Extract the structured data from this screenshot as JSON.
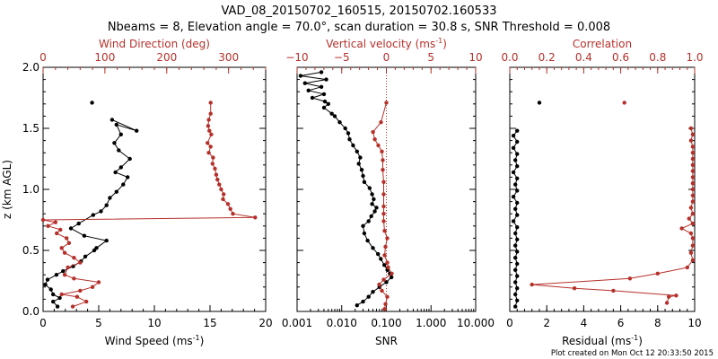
{
  "header": {
    "title_line1": "VAD_08_20150702_160515, 20150702.160533",
    "title_line2": "Nbeams = 8, Elevation angle = 70.0°, scan duration = 30.8 s, SNR Threshold = 0.008"
  },
  "footer": {
    "text": "Plot created on Mon Oct 12 20:33:50 2015"
  },
  "colors": {
    "black": "#000000",
    "red": "#b5302a"
  },
  "chart_data": [
    {
      "type": "line",
      "panel": "left",
      "ylabel": "z (km AGL)",
      "ylim": [
        0,
        2.0
      ],
      "yticks": [
        "0.0",
        "0.5",
        "1.0",
        "1.5",
        "2.0"
      ],
      "bottom_axis": {
        "label": "Wind Speed (ms",
        "exp": "-1",
        "close": ")",
        "range": [
          0,
          20
        ],
        "ticks": [
          "0",
          "5",
          "10",
          "15",
          "20"
        ]
      },
      "top_axis": {
        "label": "Wind Direction (deg)",
        "range": [
          0,
          360
        ],
        "ticks": [
          "0",
          "100",
          "200",
          "300"
        ]
      },
      "series": [
        {
          "name": "Wind Speed",
          "axis": "bottom",
          "color": "black",
          "points": [
            [
              6.2,
              1.57
            ],
            [
              8.4,
              1.48
            ],
            [
              6.6,
              1.53
            ],
            [
              7.0,
              1.45
            ],
            [
              6.4,
              1.38
            ],
            [
              6.8,
              1.32
            ],
            [
              7.8,
              1.25
            ],
            [
              7.0,
              1.18
            ],
            [
              6.5,
              1.14
            ],
            [
              7.6,
              1.1
            ],
            [
              7.2,
              1.04
            ],
            [
              6.6,
              0.98
            ],
            [
              6.0,
              0.93
            ],
            [
              5.7,
              0.87
            ],
            [
              5.2,
              0.82
            ],
            [
              4.5,
              0.79
            ],
            [
              3.2,
              0.72
            ],
            [
              2.5,
              0.68
            ],
            [
              3.7,
              0.62
            ],
            [
              5.7,
              0.58
            ],
            [
              4.8,
              0.52
            ],
            [
              4.6,
              0.5
            ],
            [
              3.8,
              0.45
            ],
            [
              3.4,
              0.41
            ],
            [
              2.7,
              0.37
            ],
            [
              1.8,
              0.33
            ],
            [
              1.2,
              0.3
            ],
            [
              0.4,
              0.26
            ],
            [
              0.2,
              0.22
            ],
            [
              0.7,
              0.18
            ],
            [
              0.9,
              0.14
            ],
            [
              1.5,
              0.11
            ],
            [
              0.9,
              0.08
            ],
            [
              1.3,
              0.04
            ]
          ]
        },
        {
          "name": "Wind Speed (top level)",
          "axis": "bottom",
          "color": "black",
          "points": [
            [
              4.4,
              1.71
            ]
          ]
        },
        {
          "name": "Wind Direction",
          "axis": "top",
          "color": "red",
          "points": [
            [
              271,
              1.71
            ],
            [
              271,
              1.62
            ],
            [
              268,
              1.57
            ],
            [
              267,
              1.52
            ],
            [
              269,
              1.48
            ],
            [
              272,
              1.45
            ],
            [
              266,
              1.38
            ],
            [
              271,
              1.35
            ],
            [
              268,
              1.3
            ],
            [
              275,
              1.26
            ],
            [
              274,
              1.21
            ],
            [
              278,
              1.17
            ],
            [
              280,
              1.12
            ],
            [
              282,
              1.08
            ],
            [
              285,
              1.04
            ],
            [
              288,
              1.0
            ],
            [
              292,
              0.96
            ],
            [
              291,
              0.92
            ],
            [
              299,
              0.88
            ],
            [
              303,
              0.84
            ],
            [
              307,
              0.8
            ],
            [
              343,
              0.77
            ],
            [
              0,
              0.75
            ],
            [
              20,
              0.73
            ],
            [
              8,
              0.7
            ],
            [
              28,
              0.67
            ],
            [
              22,
              0.64
            ],
            [
              38,
              0.6
            ],
            [
              42,
              0.56
            ],
            [
              30,
              0.52
            ],
            [
              35,
              0.48
            ],
            [
              50,
              0.44
            ],
            [
              60,
              0.4
            ],
            [
              40,
              0.36
            ],
            [
              35,
              0.3
            ],
            [
              50,
              0.27
            ],
            [
              90,
              0.24
            ],
            [
              80,
              0.2
            ],
            [
              60,
              0.17
            ],
            [
              30,
              0.14
            ],
            [
              55,
              0.12
            ],
            [
              70,
              0.08
            ],
            [
              48,
              0.04
            ]
          ]
        }
      ]
    },
    {
      "type": "line",
      "panel": "middle",
      "ylim": [
        0,
        2.0
      ],
      "bottom_axis": {
        "label": "SNR",
        "scale": "log",
        "range": [
          0.001,
          10
        ],
        "ticks": [
          "0.001",
          "0.010",
          "0.100",
          "1.000",
          "10.000"
        ]
      },
      "top_axis": {
        "label": "Vertical velocity (ms",
        "exp": "-1",
        "close": ")",
        "range": [
          -10,
          10
        ],
        "ticks": [
          "−10",
          "−5",
          "0",
          "5",
          "10"
        ]
      },
      "reference_line": {
        "axis": "top",
        "value": 0,
        "style": "dotted",
        "color": "red"
      },
      "series": [
        {
          "name": "SNR",
          "axis": "bottom",
          "color": "black",
          "points": [
            [
              0.0035,
              1.96
            ],
            [
              0.0012,
              1.93
            ],
            [
              0.0045,
              1.9
            ],
            [
              0.0015,
              1.87
            ],
            [
              0.0035,
              1.84
            ],
            [
              0.0018,
              1.81
            ],
            [
              0.004,
              1.78
            ],
            [
              0.0022,
              1.75
            ],
            [
              0.0042,
              1.72
            ],
            [
              0.005,
              1.7
            ],
            [
              0.004,
              1.67
            ],
            [
              0.006,
              1.62
            ],
            [
              0.007,
              1.6
            ],
            [
              0.009,
              1.55
            ],
            [
              0.012,
              1.5
            ],
            [
              0.014,
              1.46
            ],
            [
              0.015,
              1.41
            ],
            [
              0.018,
              1.36
            ],
            [
              0.022,
              1.31
            ],
            [
              0.026,
              1.26
            ],
            [
              0.024,
              1.21
            ],
            [
              0.028,
              1.16
            ],
            [
              0.03,
              1.11
            ],
            [
              0.032,
              1.06
            ],
            [
              0.042,
              1.01
            ],
            [
              0.048,
              0.96
            ],
            [
              0.052,
              0.92
            ],
            [
              0.048,
              0.88
            ],
            [
              0.06,
              0.85
            ],
            [
              0.055,
              0.82
            ],
            [
              0.046,
              0.78
            ],
            [
              0.04,
              0.74
            ],
            [
              0.03,
              0.7
            ],
            [
              0.032,
              0.64
            ],
            [
              0.038,
              0.58
            ],
            [
              0.05,
              0.52
            ],
            [
              0.065,
              0.47
            ],
            [
              0.075,
              0.43
            ],
            [
              0.09,
              0.38
            ],
            [
              0.105,
              0.34
            ],
            [
              0.12,
              0.31
            ],
            [
              0.13,
              0.28
            ],
            [
              0.1,
              0.24
            ],
            [
              0.07,
              0.2
            ],
            [
              0.05,
              0.16
            ],
            [
              0.04,
              0.12
            ],
            [
              0.03,
              0.08
            ],
            [
              0.022,
              0.05
            ]
          ]
        },
        {
          "name": "Vertical velocity",
          "axis": "top",
          "color": "red",
          "points": [
            [
              0.0,
              1.71
            ],
            [
              -0.6,
              1.55
            ],
            [
              -1.5,
              1.47
            ],
            [
              -1.3,
              1.41
            ],
            [
              -0.9,
              1.36
            ],
            [
              -0.5,
              1.31
            ],
            [
              -0.4,
              1.24
            ],
            [
              -0.4,
              1.16
            ],
            [
              -0.3,
              1.06
            ],
            [
              -0.3,
              0.96
            ],
            [
              -0.3,
              0.86
            ],
            [
              -0.3,
              0.8
            ],
            [
              -0.3,
              0.74
            ],
            [
              -0.2,
              0.66
            ],
            [
              0.1,
              0.6
            ],
            [
              -0.1,
              0.53
            ],
            [
              -0.2,
              0.46
            ],
            [
              0.1,
              0.4
            ],
            [
              0.2,
              0.36
            ],
            [
              0.6,
              0.31
            ],
            [
              -0.3,
              0.26
            ],
            [
              -0.8,
              0.22
            ],
            [
              -0.5,
              0.17
            ],
            [
              0.1,
              0.12
            ],
            [
              -0.1,
              0.06
            ],
            [
              -0.2,
              0.02
            ]
          ]
        }
      ]
    },
    {
      "type": "line",
      "panel": "right",
      "ylim": [
        0,
        2.0
      ],
      "bottom_axis": {
        "label": "Residual (ms",
        "exp": "-1",
        "close": ")",
        "range": [
          0,
          10
        ],
        "ticks": [
          "0",
          "2",
          "4",
          "6",
          "8",
          "10"
        ]
      },
      "top_axis": {
        "label": "Correlation",
        "range": [
          0,
          1
        ],
        "ticks": [
          "0.0",
          "0.2",
          "0.4",
          "0.6",
          "0.8",
          "1.0"
        ]
      },
      "series": [
        {
          "name": "Residual",
          "axis": "bottom",
          "color": "black",
          "points": [
            [
              0.4,
              1.48
            ],
            [
              0.2,
              1.44
            ],
            [
              0.4,
              1.39
            ],
            [
              0.2,
              1.34
            ],
            [
              0.4,
              1.29
            ],
            [
              0.3,
              1.24
            ],
            [
              0.4,
              1.19
            ],
            [
              0.2,
              1.14
            ],
            [
              0.4,
              1.09
            ],
            [
              0.3,
              1.04
            ],
            [
              0.4,
              0.99
            ],
            [
              0.2,
              0.94
            ],
            [
              0.4,
              0.89
            ],
            [
              0.3,
              0.84
            ],
            [
              0.4,
              0.79
            ],
            [
              0.2,
              0.74
            ],
            [
              0.4,
              0.69
            ],
            [
              0.3,
              0.64
            ],
            [
              0.4,
              0.59
            ],
            [
              0.3,
              0.54
            ],
            [
              0.4,
              0.49
            ],
            [
              0.3,
              0.44
            ],
            [
              0.4,
              0.39
            ],
            [
              0.3,
              0.34
            ],
            [
              0.4,
              0.29
            ],
            [
              0.3,
              0.24
            ],
            [
              0.4,
              0.19
            ],
            [
              0.3,
              0.14
            ],
            [
              0.4,
              0.09
            ],
            [
              0.3,
              0.04
            ]
          ]
        },
        {
          "name": "Residual (top level)",
          "axis": "bottom",
          "color": "black",
          "points": [
            [
              1.6,
              1.71
            ]
          ]
        },
        {
          "name": "Correlation",
          "axis": "top",
          "color": "red",
          "points": [
            [
              0.62,
              1.71
            ]
          ]
        },
        {
          "name": "Correlation profile",
          "axis": "top",
          "color": "red",
          "points": [
            [
              0.98,
              1.5
            ],
            [
              0.99,
              1.45
            ],
            [
              0.98,
              1.4
            ],
            [
              0.99,
              1.35
            ],
            [
              0.99,
              1.3
            ],
            [
              0.99,
              1.25
            ],
            [
              0.99,
              1.2
            ],
            [
              0.99,
              1.15
            ],
            [
              0.99,
              1.1
            ],
            [
              0.99,
              1.05
            ],
            [
              0.99,
              1.0
            ],
            [
              0.99,
              0.95
            ],
            [
              0.99,
              0.9
            ],
            [
              0.98,
              0.85
            ],
            [
              0.99,
              0.8
            ],
            [
              0.97,
              0.76
            ],
            [
              0.99,
              0.72
            ],
            [
              0.93,
              0.68
            ],
            [
              0.98,
              0.64
            ],
            [
              0.99,
              0.6
            ],
            [
              0.99,
              0.54
            ],
            [
              0.98,
              0.48
            ],
            [
              0.99,
              0.42
            ],
            [
              0.96,
              0.36
            ],
            [
              0.8,
              0.31
            ],
            [
              0.65,
              0.27
            ],
            [
              0.12,
              0.22
            ],
            [
              0.35,
              0.19
            ],
            [
              0.56,
              0.17
            ],
            [
              0.9,
              0.13
            ],
            [
              0.86,
              0.12
            ],
            [
              0.85,
              0.07
            ]
          ]
        }
      ]
    }
  ]
}
